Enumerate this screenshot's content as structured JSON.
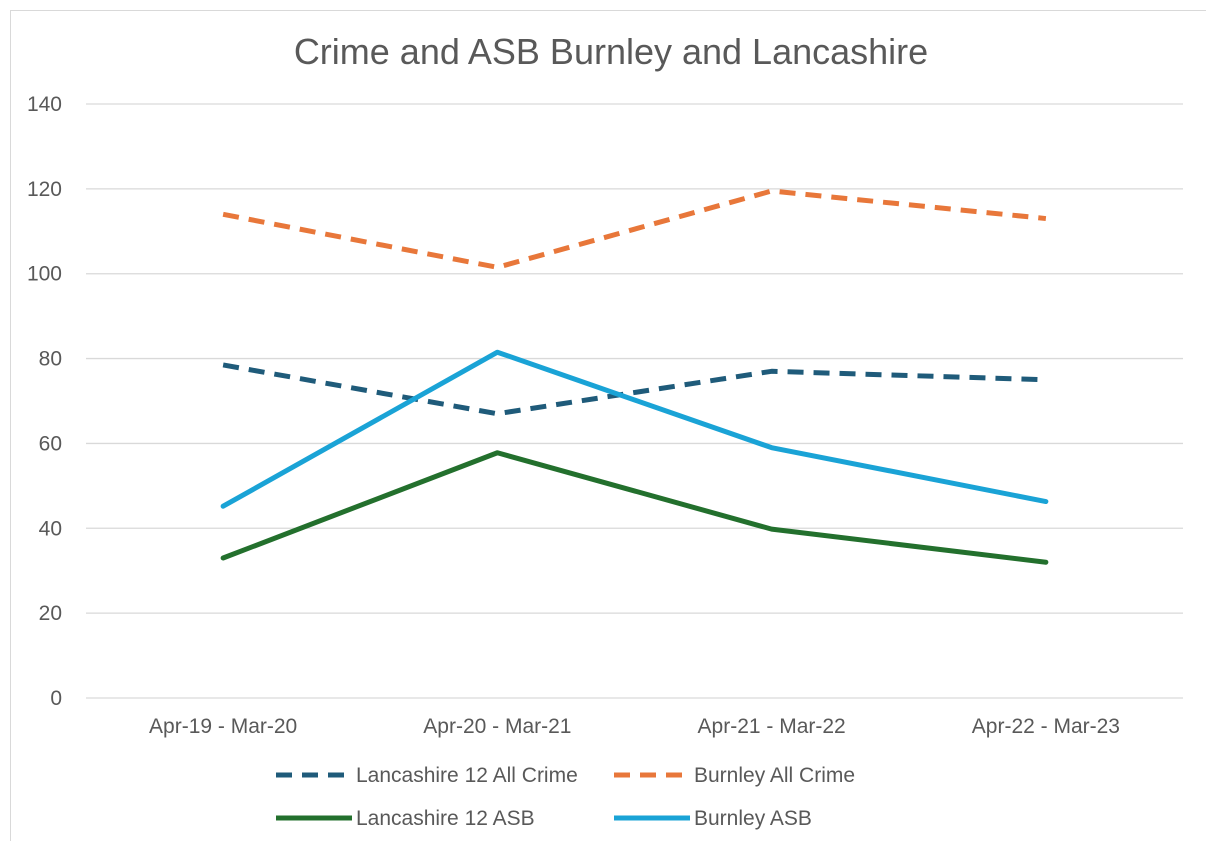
{
  "chart_data": {
    "type": "line",
    "title": "Crime and ASB Burnley and Lancashire",
    "categories": [
      "Apr-19 - Mar-20",
      "Apr-20 - Mar-21",
      "Apr-21 - Mar-22",
      "Apr-22 - Mar-23"
    ],
    "ylim": [
      0,
      140
    ],
    "yticks": [
      "0",
      "20",
      "40",
      "60",
      "80",
      "100",
      "120",
      "140"
    ],
    "grid": true,
    "legend_position": "bottom",
    "series": [
      {
        "name": "Lancashire 12 All Crime",
        "values": [
          78.5,
          67,
          77,
          75
        ],
        "color": "#1f5b7a",
        "dashed": true
      },
      {
        "name": "Burnley All Crime",
        "values": [
          114,
          101.5,
          119.5,
          113
        ],
        "color": "#e8773a",
        "dashed": true
      },
      {
        "name": "Lancashire 12 ASB",
        "values": [
          33,
          57.8,
          39.8,
          32
        ],
        "color": "#23702d",
        "dashed": false
      },
      {
        "name": "Burnley ASB",
        "values": [
          45.2,
          81.5,
          59,
          46.3
        ],
        "color": "#1aa3d6",
        "dashed": false
      }
    ]
  }
}
